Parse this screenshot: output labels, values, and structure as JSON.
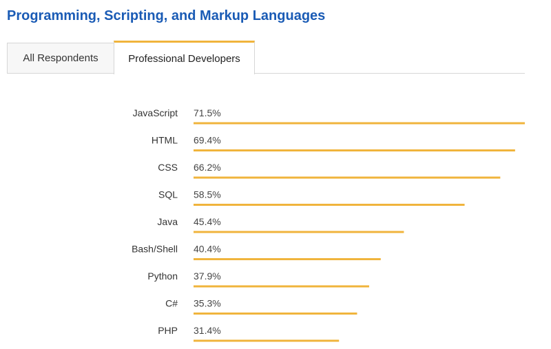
{
  "section": {
    "title": "Programming, Scripting, and Markup Languages"
  },
  "tabs": [
    {
      "label": "All Respondents",
      "active": false
    },
    {
      "label": "Professional Developers",
      "active": true
    }
  ],
  "colors": {
    "bar": "#f0b43c",
    "title": "#1a5bb5",
    "tab_active_border": "#f0b43c"
  },
  "chart_data": {
    "type": "bar",
    "orientation": "horizontal",
    "categories": [
      "JavaScript",
      "HTML",
      "CSS",
      "SQL",
      "Java",
      "Bash/Shell",
      "Python",
      "C#",
      "PHP"
    ],
    "values": [
      71.5,
      69.4,
      66.2,
      58.5,
      45.4,
      40.4,
      37.9,
      35.3,
      31.4
    ],
    "value_labels": [
      "71.5%",
      "69.4%",
      "66.2%",
      "58.5%",
      "45.4%",
      "40.4%",
      "37.9%",
      "35.3%",
      "31.4%"
    ],
    "unit": "%",
    "title": "",
    "xlabel": "",
    "ylabel": "",
    "xlim": [
      0,
      71.5
    ],
    "grid": false,
    "legend": "none"
  }
}
